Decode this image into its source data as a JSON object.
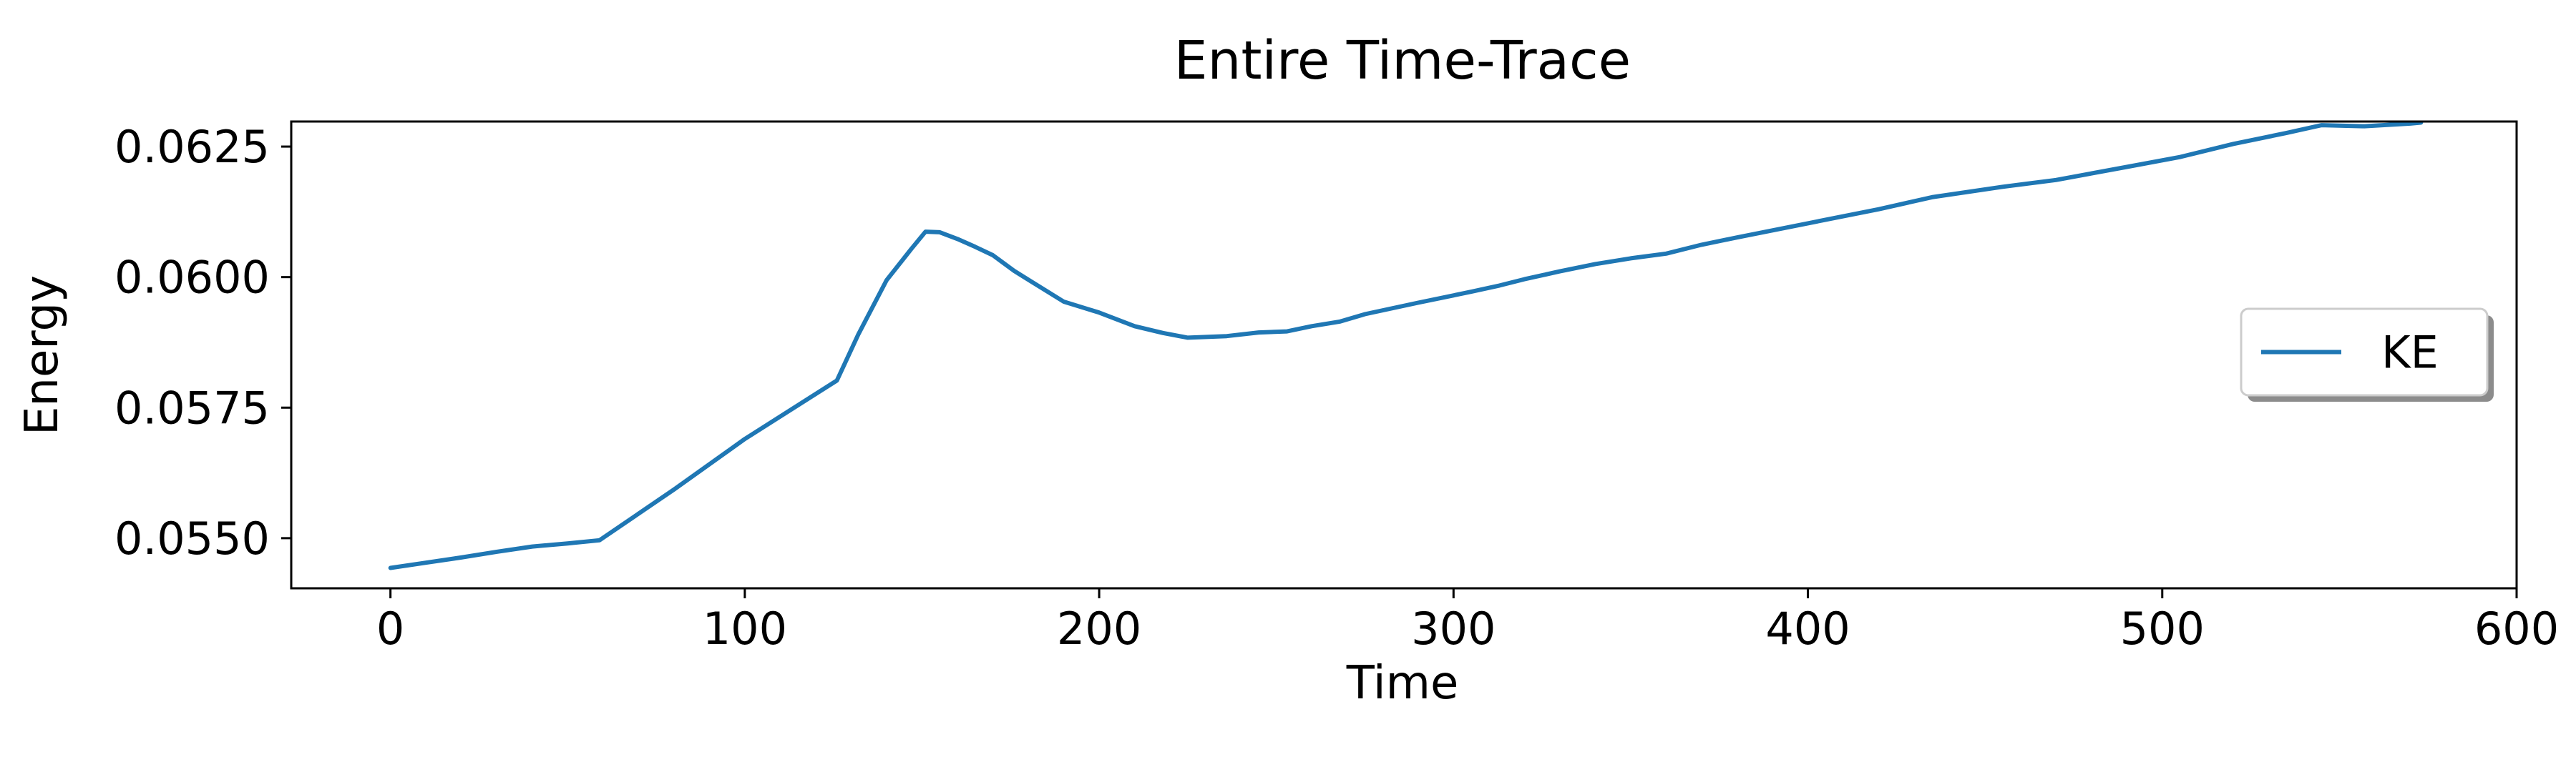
{
  "chart_data": {
    "type": "line",
    "title": "Entire Time-Trace",
    "xlabel": "Time",
    "ylabel": "Energy",
    "xlim": [
      -28,
      600
    ],
    "ylim": [
      0.05404,
      0.06298
    ],
    "xticks": [
      0,
      100,
      200,
      300,
      400,
      500,
      600
    ],
    "xtick_labels": [
      "0",
      "100",
      "200",
      "300",
      "400",
      "500",
      "600"
    ],
    "yticks": [
      0.055,
      0.0575,
      0.06,
      0.0625
    ],
    "ytick_labels": [
      "0.0550",
      "0.0575",
      "0.0600",
      "0.0625"
    ],
    "grid": false,
    "legend_position": "center-right",
    "series": [
      {
        "name": "KE",
        "color": "#1f77b4",
        "x": [
          0,
          10,
          20,
          30,
          40,
          50,
          59,
          80,
          100,
          126,
          132,
          140,
          147,
          151,
          155,
          160,
          165,
          170,
          176,
          180,
          190,
          200,
          210,
          218,
          225,
          236,
          245,
          253,
          260,
          268,
          275,
          290,
          305,
          313,
          320,
          330,
          340,
          350,
          360,
          370,
          380,
          400,
          420,
          435,
          455,
          470,
          490,
          505,
          520,
          535,
          545,
          557,
          570,
          573
        ],
        "y": [
          0.05443,
          0.05453,
          0.05463,
          0.05474,
          0.05484,
          0.0549,
          0.05496,
          0.05593,
          0.0569,
          0.05802,
          0.0589,
          0.05994,
          0.06054,
          0.06087,
          0.06086,
          0.06073,
          0.06058,
          0.06042,
          0.06012,
          0.05995,
          0.05953,
          0.05932,
          0.05906,
          0.05893,
          0.05884,
          0.05887,
          0.05894,
          0.05896,
          0.05906,
          0.05915,
          0.05929,
          0.05951,
          0.05972,
          0.05984,
          0.05996,
          0.06011,
          0.06025,
          0.06036,
          0.06045,
          0.06062,
          0.06076,
          0.06103,
          0.0613,
          0.06153,
          0.06173,
          0.06186,
          0.06211,
          0.0623,
          0.06255,
          0.06276,
          0.06291,
          0.06289,
          0.06294,
          0.06296
        ]
      }
    ]
  }
}
